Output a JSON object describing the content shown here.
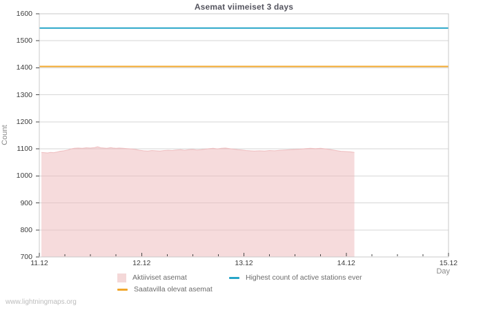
{
  "page": {
    "watermark": "www.lightningmaps.org"
  },
  "chart_data": {
    "type": "area",
    "title": "Asemat viimeiset 3 days",
    "xlabel": "Day",
    "ylabel": "Count",
    "ylim": [
      700,
      1600
    ],
    "y_ticks": [
      700,
      800,
      900,
      1000,
      1100,
      1200,
      1300,
      1400,
      1500,
      1600
    ],
    "xlim_days": [
      0,
      4
    ],
    "x_ticks": [
      {
        "day": 0,
        "label": "11.12"
      },
      {
        "day": 1,
        "label": "12.12"
      },
      {
        "day": 2,
        "label": "13.12"
      },
      {
        "day": 3,
        "label": "14.12"
      },
      {
        "day": 4,
        "label": "15.12"
      }
    ],
    "x_minor_tick_days": 0.25,
    "grid": "horizontal-only",
    "legend_position": "bottom",
    "colors": {
      "active_area": "#edb8ba",
      "highest_line": "#26a5c8",
      "available_line": "#f0a62a",
      "grid": "#d6d6d6",
      "border": "#c8c8c8",
      "tick": "#444444"
    },
    "series": [
      {
        "name": "Aktiiviset asemat",
        "type": "area",
        "color": "#edb8ba",
        "fill_opacity": 0.5,
        "points": [
          [
            0.02,
            1087
          ],
          [
            0.05,
            1086
          ],
          [
            0.08,
            1085
          ],
          [
            0.11,
            1087
          ],
          [
            0.14,
            1086
          ],
          [
            0.17,
            1088
          ],
          [
            0.2,
            1091
          ],
          [
            0.24,
            1093
          ],
          [
            0.28,
            1096
          ],
          [
            0.31,
            1100
          ],
          [
            0.34,
            1102
          ],
          [
            0.38,
            1103
          ],
          [
            0.42,
            1102
          ],
          [
            0.46,
            1104
          ],
          [
            0.5,
            1103
          ],
          [
            0.54,
            1105
          ],
          [
            0.57,
            1108
          ],
          [
            0.6,
            1104
          ],
          [
            0.63,
            1103
          ],
          [
            0.66,
            1102
          ],
          [
            0.7,
            1105
          ],
          [
            0.72,
            1103
          ],
          [
            0.75,
            1102
          ],
          [
            0.78,
            1103
          ],
          [
            0.82,
            1102
          ],
          [
            0.86,
            1101
          ],
          [
            0.9,
            1100
          ],
          [
            0.94,
            1098
          ],
          [
            0.98,
            1095
          ],
          [
            1.02,
            1093
          ],
          [
            1.06,
            1092
          ],
          [
            1.1,
            1094
          ],
          [
            1.14,
            1093
          ],
          [
            1.18,
            1092
          ],
          [
            1.22,
            1094
          ],
          [
            1.26,
            1095
          ],
          [
            1.3,
            1094
          ],
          [
            1.34,
            1096
          ],
          [
            1.38,
            1097
          ],
          [
            1.42,
            1095
          ],
          [
            1.46,
            1097
          ],
          [
            1.5,
            1098
          ],
          [
            1.54,
            1096
          ],
          [
            1.58,
            1097
          ],
          [
            1.62,
            1099
          ],
          [
            1.66,
            1101
          ],
          [
            1.7,
            1102
          ],
          [
            1.74,
            1100
          ],
          [
            1.78,
            1102
          ],
          [
            1.82,
            1103
          ],
          [
            1.86,
            1101
          ],
          [
            1.9,
            1099
          ],
          [
            1.94,
            1097
          ],
          [
            1.98,
            1096
          ],
          [
            2.02,
            1094
          ],
          [
            2.06,
            1093
          ],
          [
            2.1,
            1092
          ],
          [
            2.15,
            1093
          ],
          [
            2.2,
            1092
          ],
          [
            2.25,
            1094
          ],
          [
            2.3,
            1093
          ],
          [
            2.35,
            1095
          ],
          [
            2.4,
            1096
          ],
          [
            2.45,
            1097
          ],
          [
            2.5,
            1098
          ],
          [
            2.55,
            1099
          ],
          [
            2.6,
            1101
          ],
          [
            2.65,
            1102
          ],
          [
            2.7,
            1101
          ],
          [
            2.75,
            1102
          ],
          [
            2.8,
            1100
          ],
          [
            2.85,
            1097
          ],
          [
            2.9,
            1094
          ],
          [
            2.95,
            1091
          ],
          [
            3.0,
            1090
          ],
          [
            3.04,
            1089
          ],
          [
            3.08,
            1087
          ]
        ]
      },
      {
        "name": "Highest count of active stations ever",
        "type": "hline",
        "color": "#26a5c8",
        "value": 1547
      },
      {
        "name": "Saatavilla olevat asemat",
        "type": "hline",
        "color": "#f0a62a",
        "value": 1405
      }
    ]
  }
}
